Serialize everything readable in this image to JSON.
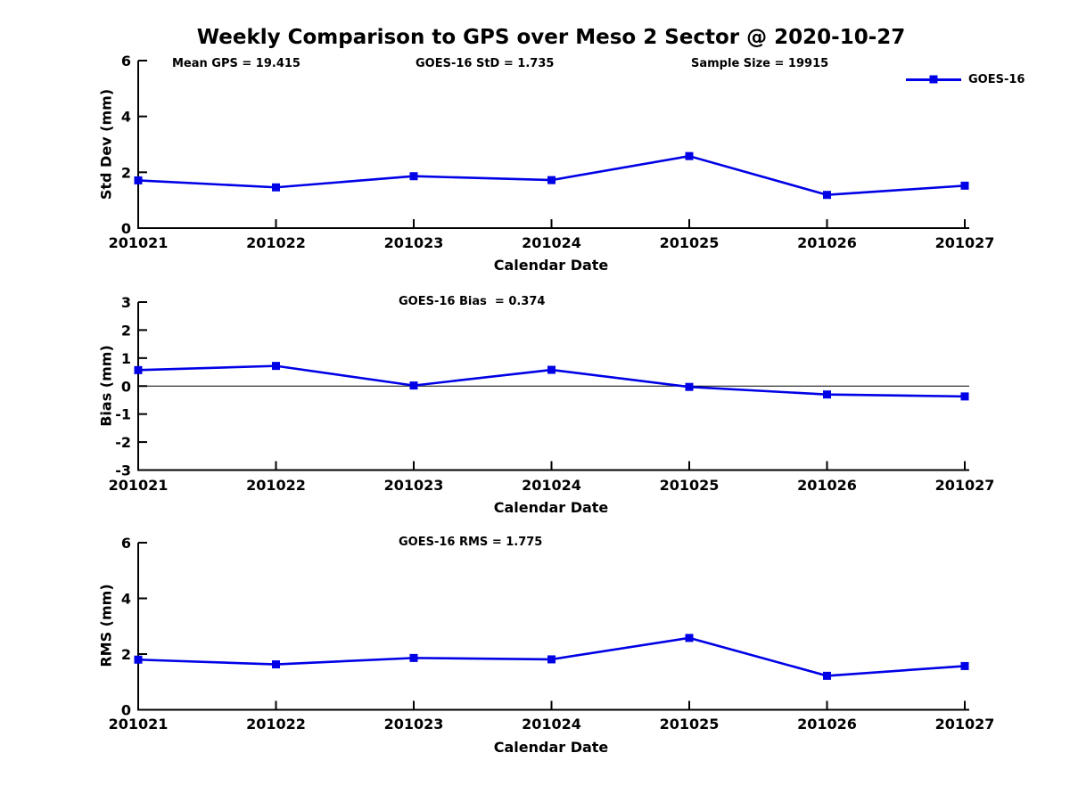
{
  "title": "Weekly Comparison to GPS over Meso 2 Sector @ 2020-10-27",
  "colors": {
    "line": "#0000e6",
    "axis": "#000000",
    "text": "#000000",
    "background": "#ffffff"
  },
  "legend": {
    "label": "GOES-16",
    "position": "top-right"
  },
  "chart_data": [
    {
      "type": "line",
      "panel": "std-dev",
      "title": "",
      "annotations": [
        "Mean GPS = 19.415",
        "GOES-16 StD = 1.735",
        "Sample Size = 19915"
      ],
      "xlabel": "Calendar Date",
      "ylabel": "Std Dev (mm)",
      "categories": [
        "201021",
        "201022",
        "201023",
        "201024",
        "201025",
        "201026",
        "201027"
      ],
      "series": [
        {
          "name": "GOES-16",
          "values": [
            1.71,
            1.46,
            1.86,
            1.72,
            2.58,
            1.19,
            1.52
          ]
        }
      ],
      "ylim": [
        0,
        6
      ],
      "yticks": [
        0,
        2,
        4,
        6
      ],
      "grid": false,
      "zero_line": false,
      "legend": {
        "label": "GOES-16",
        "position": "top-right"
      }
    },
    {
      "type": "line",
      "panel": "bias",
      "title": "",
      "annotations": [
        "GOES-16 Bias  = 0.374"
      ],
      "xlabel": "Calendar Date",
      "ylabel": "Bias (mm)",
      "categories": [
        "201021",
        "201022",
        "201023",
        "201024",
        "201025",
        "201026",
        "201027"
      ],
      "series": [
        {
          "name": "GOES-16",
          "values": [
            0.57,
            0.72,
            0.02,
            0.58,
            -0.03,
            -0.3,
            -0.37
          ]
        }
      ],
      "ylim": [
        -3,
        3
      ],
      "yticks": [
        3,
        2,
        1,
        0,
        -1,
        -2,
        -3
      ],
      "grid": false,
      "zero_line": true
    },
    {
      "type": "line",
      "panel": "rms",
      "title": "",
      "annotations": [
        "GOES-16 RMS = 1.775"
      ],
      "xlabel": "Calendar Date",
      "ylabel": "RMS (mm)",
      "categories": [
        "201021",
        "201022",
        "201023",
        "201024",
        "201025",
        "201026",
        "201027"
      ],
      "series": [
        {
          "name": "GOES-16",
          "values": [
            1.8,
            1.63,
            1.86,
            1.81,
            2.58,
            1.22,
            1.57
          ]
        }
      ],
      "ylim": [
        0,
        6
      ],
      "yticks": [
        0,
        2,
        4,
        6
      ],
      "grid": false,
      "zero_line": false
    }
  ]
}
